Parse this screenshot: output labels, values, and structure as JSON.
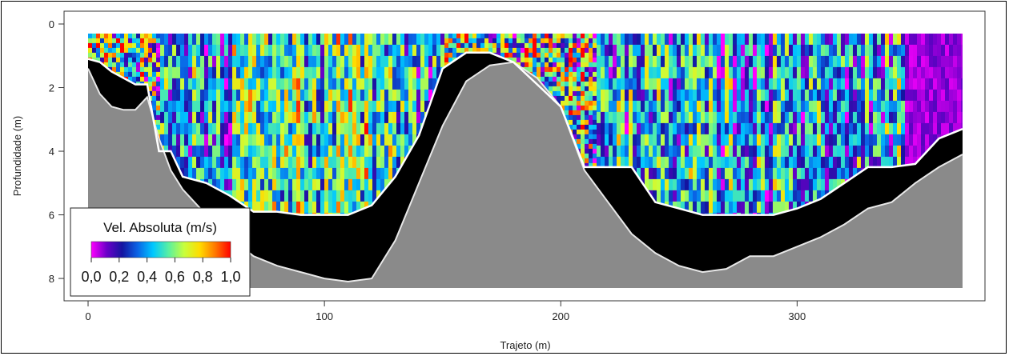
{
  "chart_data": {
    "type": "heatmap",
    "title": "",
    "xlabel": "Trajeto (m)",
    "ylabel": "Profundidade (m)",
    "xlim": [
      0,
      370
    ],
    "ylim": [
      8.3,
      0
    ],
    "x_ticks": [
      0,
      100,
      200,
      300
    ],
    "y_ticks": [
      0,
      2,
      4,
      6,
      8
    ],
    "colorbar": {
      "title": "Vel. Absoluta (m/s)",
      "ticks": [
        "0,0",
        "0,2",
        "0,4",
        "0,6",
        "0,8",
        "1,0"
      ],
      "range": [
        0,
        1
      ],
      "colors": [
        "#ff00ff",
        "#6a00c8",
        "#1414a0",
        "#0a64e6",
        "#00c8ff",
        "#5af0a0",
        "#c8ff3c",
        "#ffdc00",
        "#ff7800",
        "#ff0000"
      ],
      "placement": "bottom-left"
    },
    "bed_depth_profile": {
      "x": [
        0,
        5,
        10,
        15,
        20,
        25,
        30,
        35,
        40,
        50,
        60,
        70,
        80,
        90,
        100,
        110,
        120,
        130,
        140,
        150,
        160,
        170,
        180,
        190,
        200,
        210,
        220,
        230,
        240,
        250,
        260,
        270,
        280,
        290,
        300,
        310,
        320,
        330,
        340,
        350,
        360,
        370
      ],
      "y": [
        1.4,
        2.2,
        2.6,
        2.7,
        2.7,
        2.3,
        3.6,
        4.6,
        5.2,
        6.0,
        6.7,
        7.3,
        7.6,
        7.8,
        8.0,
        8.1,
        8.0,
        6.8,
        5.0,
        3.2,
        1.8,
        1.3,
        1.2,
        1.7,
        2.6,
        4.6,
        5.6,
        6.6,
        7.2,
        7.6,
        7.8,
        7.7,
        7.3,
        7.3,
        7.0,
        6.7,
        6.3,
        5.8,
        5.6,
        5.0,
        4.5,
        4.1
      ]
    },
    "data_bottom_profile": {
      "x": [
        0,
        5,
        10,
        20,
        25,
        30,
        35,
        40,
        50,
        60,
        70,
        80,
        90,
        100,
        110,
        120,
        130,
        140,
        150,
        160,
        170,
        180,
        190,
        200,
        210,
        220,
        230,
        240,
        250,
        260,
        270,
        280,
        290,
        300,
        310,
        320,
        330,
        340,
        350,
        360,
        370
      ],
      "y": [
        1.1,
        1.2,
        1.5,
        1.9,
        1.9,
        4.0,
        4.0,
        4.8,
        5.0,
        5.4,
        5.9,
        5.9,
        6.0,
        6.0,
        6.0,
        5.7,
        4.8,
        3.5,
        1.4,
        0.9,
        0.9,
        1.2,
        1.9,
        2.6,
        4.5,
        4.5,
        4.5,
        5.6,
        5.8,
        6.0,
        6.0,
        6.0,
        6.0,
        5.8,
        5.5,
        5.0,
        4.5,
        4.5,
        4.4,
        3.6,
        3.3
      ]
    },
    "surface_depth": 0.3
  }
}
